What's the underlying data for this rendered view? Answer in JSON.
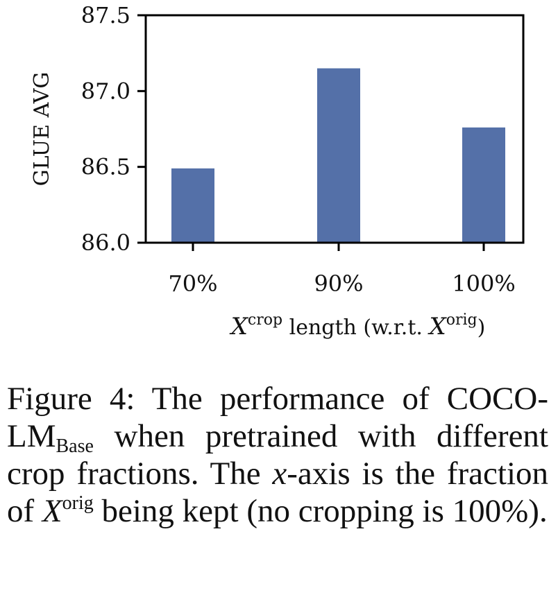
{
  "chart_data": {
    "type": "bar",
    "categories": [
      "70%",
      "90%",
      "100%"
    ],
    "values": [
      86.49,
      87.15,
      86.76
    ],
    "ylabel": "GLUE AVG",
    "xlabel": {
      "var": "X",
      "sup": "crop",
      "mid": " length (w.r.t. ",
      "var2": "X",
      "sup2": "orig",
      "end": ")"
    },
    "ylim": [
      86.0,
      87.5
    ],
    "yticks": [
      "86.0",
      "86.5",
      "87.0",
      "87.5"
    ],
    "grid": false,
    "bar_color": "#5470a8"
  },
  "caption": {
    "p1": "Figure 4:  The performance of COCO-LM",
    "sub": "Base",
    "p2": " when pretrained with different crop fractions. The ",
    "x": "x",
    "p3": "-axis is the fraction of ",
    "X": "X",
    "sup": "orig",
    "p4": " being kept (no cropping is 100%)."
  }
}
